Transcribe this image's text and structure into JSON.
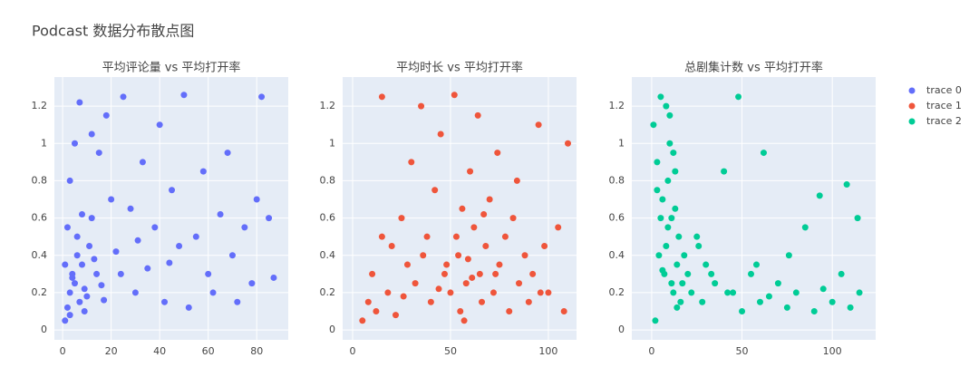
{
  "title": "Podcast 数据分布散点图",
  "chart_data": [
    {
      "type": "scatter",
      "title": "平均评论量 vs 平均打开率",
      "xlim": [
        -3.4,
        93
      ],
      "ylim": [
        -0.053,
        1.356
      ],
      "xticks": [
        0,
        20,
        40,
        60,
        80
      ],
      "yticks": [
        0,
        0.2,
        0.4,
        0.6,
        0.8,
        1,
        1.2
      ],
      "grid": true,
      "series": [
        {
          "name": "trace 0",
          "color": "#636efa",
          "x": [
            1,
            2,
            3,
            4,
            5,
            6,
            7,
            8,
            9,
            10,
            2,
            3,
            5,
            7,
            11,
            12,
            14,
            15,
            18,
            20,
            1,
            4,
            6,
            9,
            13,
            16,
            22,
            25,
            28,
            30,
            33,
            35,
            38,
            40,
            42,
            45,
            48,
            50,
            55,
            58,
            60,
            62,
            65,
            68,
            70,
            72,
            75,
            78,
            80,
            82,
            85,
            87,
            3,
            8,
            12,
            17,
            24,
            31,
            44,
            52
          ],
          "values": [
            0.05,
            0.12,
            0.2,
            0.3,
            0.25,
            0.4,
            0.15,
            0.35,
            0.22,
            0.18,
            0.55,
            0.8,
            1.0,
            1.22,
            0.45,
            0.6,
            0.3,
            0.95,
            1.15,
            0.7,
            0.35,
            0.28,
            0.5,
            0.1,
            0.38,
            0.24,
            0.42,
            1.25,
            0.65,
            0.2,
            0.9,
            0.33,
            0.55,
            1.1,
            0.15,
            0.75,
            0.45,
            1.26,
            0.5,
            0.85,
            0.3,
            0.2,
            0.62,
            0.95,
            0.4,
            0.15,
            0.55,
            0.25,
            0.7,
            1.25,
            0.6,
            0.28,
            0.08,
            0.62,
            1.05,
            0.16,
            0.3,
            0.48,
            0.36,
            0.12
          ]
        }
      ]
    },
    {
      "type": "scatter",
      "title": "平均时长 vs 平均打开率",
      "xlim": [
        -5.1,
        114.4
      ],
      "ylim": [
        -0.053,
        1.356
      ],
      "xticks": [
        0,
        50,
        100
      ],
      "yticks": [
        0,
        0.2,
        0.4,
        0.6,
        0.8,
        1,
        1.2
      ],
      "grid": true,
      "series": [
        {
          "name": "trace 1",
          "color": "#EF553B",
          "x": [
            5,
            8,
            10,
            12,
            15,
            18,
            20,
            22,
            25,
            28,
            30,
            32,
            35,
            38,
            40,
            42,
            45,
            47,
            50,
            52,
            54,
            55,
            56,
            58,
            60,
            62,
            64,
            65,
            66,
            68,
            70,
            72,
            74,
            75,
            78,
            80,
            82,
            85,
            88,
            90,
            92,
            95,
            98,
            100,
            105,
            108,
            110,
            48,
            53,
            57,
            61,
            44,
            36,
            26,
            67,
            73,
            84,
            96,
            15,
            59
          ],
          "values": [
            0.05,
            0.15,
            0.3,
            0.1,
            1.25,
            0.2,
            0.45,
            0.08,
            0.6,
            0.35,
            0.9,
            0.25,
            1.2,
            0.5,
            0.15,
            0.75,
            1.05,
            0.3,
            0.2,
            1.26,
            0.4,
            0.1,
            0.65,
            0.25,
            0.85,
            0.55,
            1.15,
            0.3,
            0.15,
            0.45,
            0.7,
            0.2,
            0.95,
            0.35,
            0.5,
            0.1,
            0.6,
            0.25,
            0.4,
            0.15,
            0.3,
            1.1,
            0.45,
            0.2,
            0.55,
            0.1,
            1.0,
            0.35,
            0.5,
            0.05,
            0.28,
            0.22,
            0.4,
            0.18,
            0.62,
            0.3,
            0.8,
            0.2,
            0.5,
            0.38
          ]
        }
      ]
    },
    {
      "type": "scatter",
      "title": "总剧集计数 vs 平均打开率",
      "xlim": [
        -11,
        124
      ],
      "ylim": [
        -0.053,
        1.356
      ],
      "xticks": [
        0,
        50,
        100
      ],
      "yticks": [
        0,
        0.2,
        0.4,
        0.6,
        0.8,
        1,
        1.2
      ],
      "grid": true,
      "series": [
        {
          "name": "trace 2",
          "color": "#00cc96",
          "x": [
            1,
            2,
            3,
            4,
            5,
            6,
            7,
            8,
            9,
            10,
            11,
            12,
            13,
            14,
            15,
            16,
            17,
            18,
            20,
            22,
            3,
            5,
            8,
            10,
            12,
            14,
            6,
            9,
            11,
            13,
            25,
            28,
            30,
            35,
            40,
            45,
            50,
            55,
            60,
            65,
            70,
            75,
            80,
            85,
            90,
            95,
            100,
            105,
            110,
            115,
            48,
            58,
            76,
            93,
            108,
            114,
            62,
            26,
            33,
            42
          ],
          "values": [
            1.1,
            0.05,
            0.9,
            0.4,
            1.25,
            0.7,
            0.3,
            1.2,
            0.55,
            1.0,
            0.6,
            0.2,
            0.85,
            0.35,
            0.5,
            0.15,
            0.25,
            0.4,
            0.3,
            0.2,
            0.75,
            0.6,
            0.45,
            1.15,
            0.95,
            0.12,
            0.32,
            0.8,
            0.25,
            0.65,
            0.5,
            0.15,
            0.35,
            0.25,
            0.85,
            0.2,
            0.1,
            0.3,
            0.15,
            0.18,
            0.25,
            0.12,
            0.2,
            0.55,
            0.1,
            0.22,
            0.15,
            0.3,
            0.12,
            0.2,
            1.25,
            0.35,
            0.4,
            0.72,
            0.78,
            0.6,
            0.95,
            0.45,
            0.3,
            0.2
          ]
        }
      ]
    }
  ]
}
